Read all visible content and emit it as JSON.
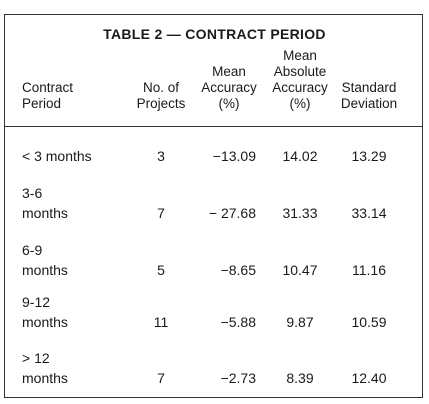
{
  "table": {
    "title": "TABLE 2 — CONTRACT PERIOD",
    "headers": [
      [
        "Contract",
        "Period"
      ],
      [
        "No. of",
        "Projects"
      ],
      [
        "Mean",
        "Accuracy",
        "(%)"
      ],
      [
        "Mean",
        "Absolute",
        "Accuracy",
        "(%)"
      ],
      [
        "Standard",
        "Deviation"
      ]
    ],
    "rows": [
      [
        [
          "< 3 months"
        ],
        "3",
        "−13.09",
        "14.02",
        "13.29"
      ],
      [
        [
          "3-6",
          "months"
        ],
        "7",
        "− 27.68",
        "31.33",
        "33.14"
      ],
      [
        [
          "6-9",
          "months"
        ],
        "5",
        "−8.65",
        "10.47",
        "11.16"
      ],
      [
        [
          "9-12",
          "months"
        ],
        "11",
        "−5.88",
        "9.87",
        "10.59"
      ],
      [
        [
          "> 12",
          "months"
        ],
        "7",
        "−2.73",
        "8.39",
        "12.40"
      ]
    ]
  }
}
